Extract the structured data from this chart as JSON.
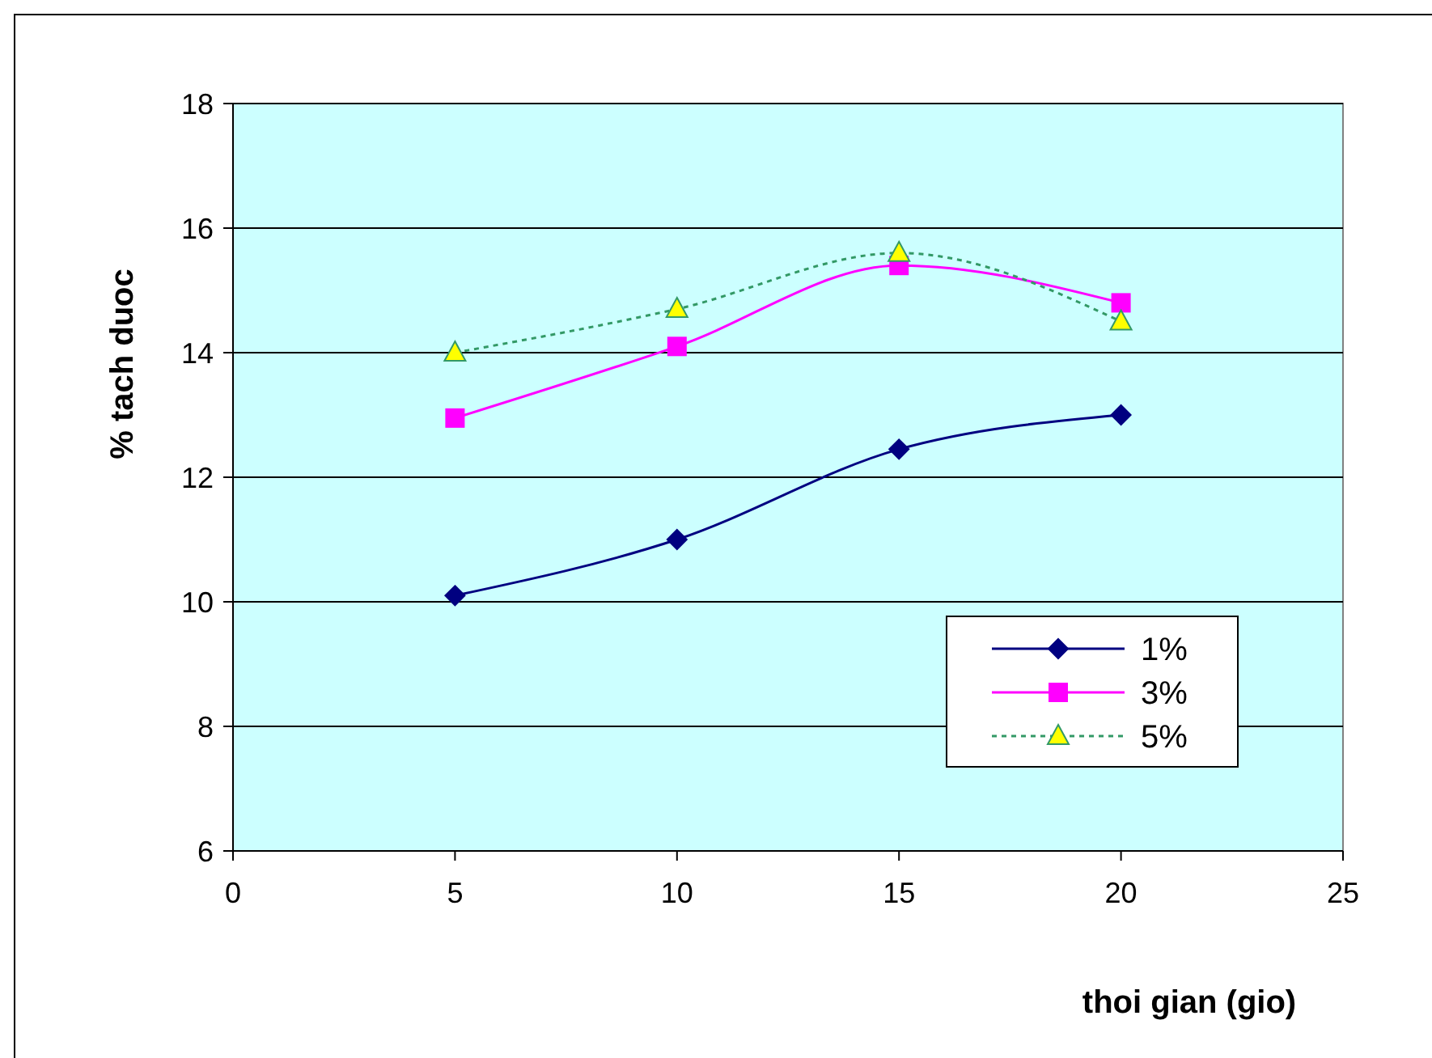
{
  "chart_data": {
    "type": "line",
    "xlabel": "thoi gian (gio)",
    "ylabel": "% tach duoc",
    "x": [
      5,
      10,
      15,
      20
    ],
    "series": [
      {
        "name": "1%",
        "color": "#000080",
        "values": [
          10.1,
          11.0,
          12.45,
          13.0
        ],
        "marker": "diamond",
        "line_style": "solid"
      },
      {
        "name": "3%",
        "color": "#ff00ff",
        "values": [
          12.95,
          14.1,
          15.4,
          14.8
        ],
        "marker": "square",
        "line_style": "solid"
      },
      {
        "name": "5%",
        "color": "#339966",
        "values": [
          14.0,
          14.7,
          15.6,
          14.5
        ],
        "marker": "triangle",
        "line_style": "dotted"
      }
    ],
    "xlim": [
      0,
      25
    ],
    "xticks": [
      0,
      5,
      10,
      15,
      20,
      25
    ],
    "ylim": [
      6,
      18
    ],
    "yticks": [
      6,
      8,
      10,
      12,
      14,
      16,
      18
    ],
    "grid": "y",
    "legend": "bottom right"
  }
}
